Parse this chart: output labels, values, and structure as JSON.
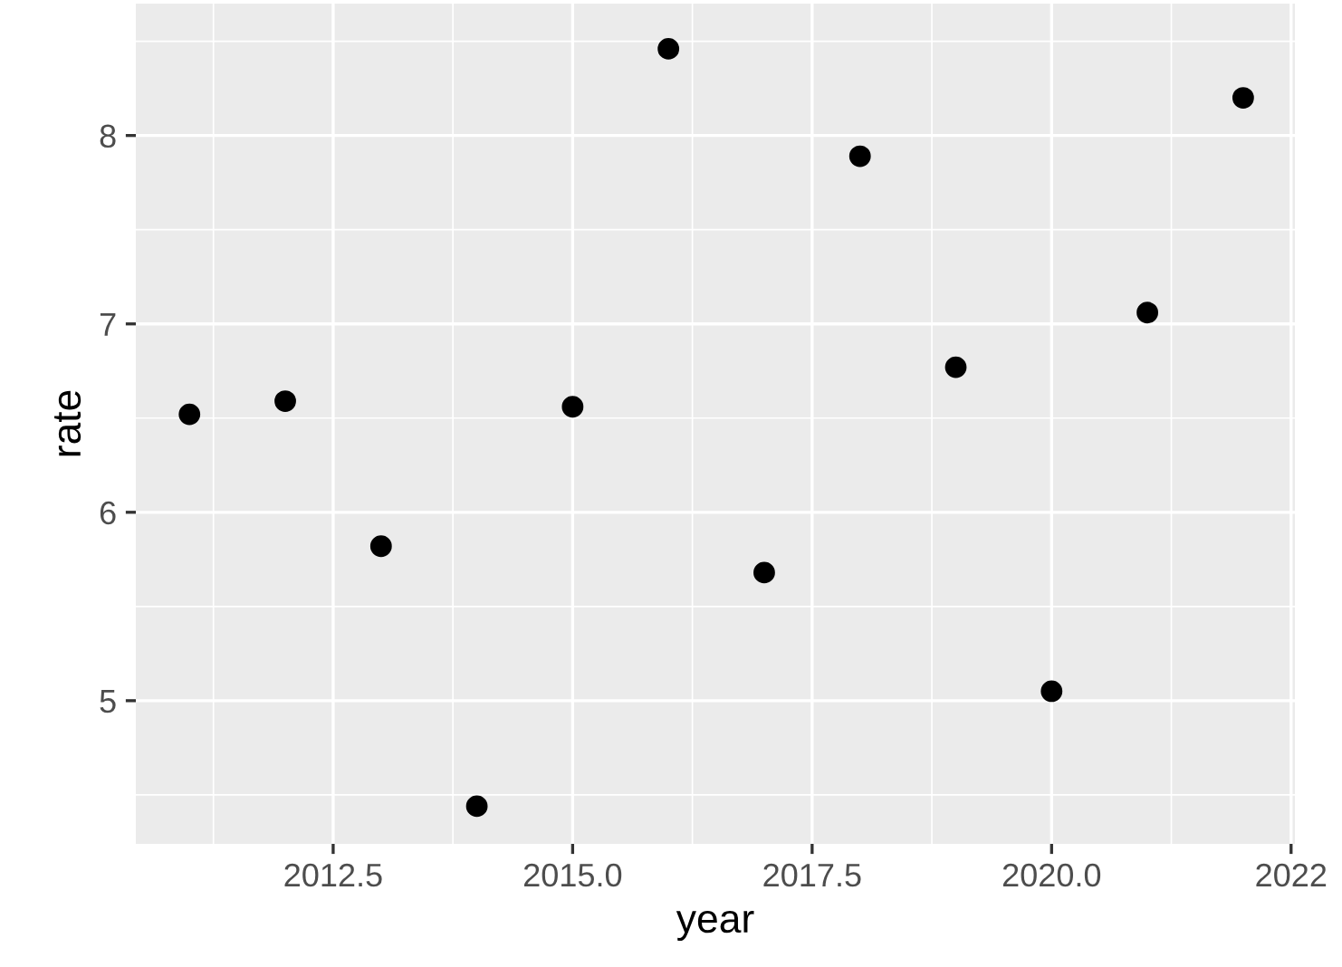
{
  "chart_data": {
    "type": "scatter",
    "xlabel": "year",
    "ylabel": "rate",
    "x": [
      2011,
      2012,
      2013,
      2014,
      2015,
      2016,
      2017,
      2018,
      2019,
      2020,
      2021,
      2022
    ],
    "values": [
      6.52,
      6.59,
      5.82,
      4.44,
      6.56,
      8.46,
      5.68,
      7.89,
      6.77,
      5.05,
      7.06,
      8.2
    ],
    "color": "#000000",
    "marker": "circle",
    "xlim": [
      2010.44,
      2022.54
    ],
    "ylim": [
      4.24,
      8.7
    ],
    "xticks": [
      {
        "value": 2012.5,
        "label": "2012.5"
      },
      {
        "value": 2015.0,
        "label": "2015.0"
      },
      {
        "value": 2017.5,
        "label": "2017.5"
      },
      {
        "value": 2020.0,
        "label": "2020.0"
      },
      {
        "value": 2022.5,
        "label": "2022"
      }
    ],
    "yticks": [
      5,
      6,
      7,
      8
    ],
    "grid": true
  }
}
